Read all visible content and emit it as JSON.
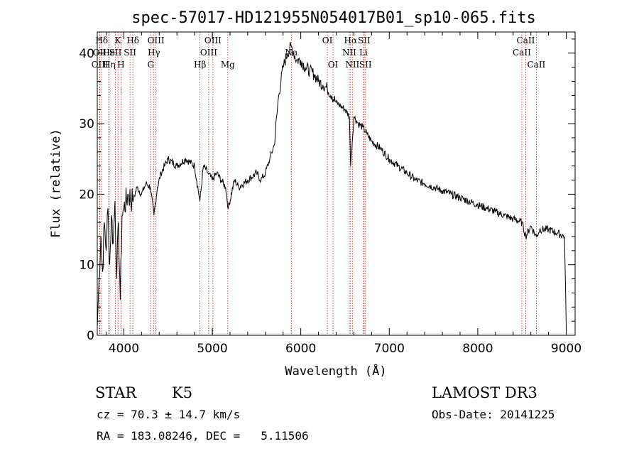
{
  "chart_data": {
    "type": "line",
    "title": "spec-57017-HD121955N054017B01_sp10-065.fits",
    "xlabel": "Wavelength (Å)",
    "ylabel": "Flux (relative)",
    "xlim": [
      3700,
      9100
    ],
    "ylim": [
      0,
      43
    ],
    "xticks": [
      4000,
      5000,
      6000,
      7000,
      8000,
      9000
    ],
    "yticks": [
      0,
      10,
      20,
      30,
      40
    ],
    "grid": false,
    "series": [
      {
        "x": [
          3700,
          3720,
          3740,
          3760,
          3780,
          3800,
          3820,
          3840,
          3860,
          3880,
          3900,
          3920,
          3940,
          3960,
          3980,
          4000,
          4050,
          4100,
          4150,
          4200,
          4250,
          4300,
          4340,
          4380,
          4420,
          4460,
          4500,
          4600,
          4700,
          4800,
          4860,
          4900,
          4950,
          5000,
          5050,
          5100,
          5150,
          5180,
          5250,
          5300,
          5400,
          5500,
          5550,
          5600,
          5650,
          5700,
          5750,
          5800,
          5850,
          5890,
          5920,
          5950,
          6000,
          6050,
          6100,
          6150,
          6200,
          6250,
          6300,
          6350,
          6400,
          6450,
          6500,
          6550,
          6563,
          6600,
          6650,
          6700,
          6750,
          6800,
          6900,
          7000,
          7100,
          7200,
          7300,
          7400,
          7500,
          7600,
          7700,
          7800,
          7900,
          8000,
          8100,
          8200,
          8300,
          8400,
          8500,
          8542,
          8600,
          8662,
          8700,
          8800,
          8900,
          8980,
          9000
        ],
        "y": [
          1,
          8,
          14,
          9,
          16,
          12,
          18,
          10,
          17,
          13,
          19,
          8,
          16,
          5,
          17,
          18,
          20,
          19,
          21,
          20,
          21.5,
          21,
          17,
          21,
          23,
          24,
          25,
          24,
          25,
          24,
          19,
          24,
          23,
          22,
          23,
          22,
          21,
          18,
          22,
          21,
          22,
          23,
          22,
          23,
          25,
          27,
          34,
          38,
          40,
          41,
          40,
          39,
          39,
          38,
          37.5,
          37,
          36,
          35.5,
          35,
          34,
          33,
          32.5,
          32,
          31,
          24,
          31,
          30,
          29.5,
          28.5,
          27.5,
          26.5,
          25,
          24,
          23,
          22,
          21.5,
          21,
          20.5,
          20,
          19.5,
          19,
          18.5,
          18,
          17.5,
          17,
          16.5,
          16,
          14,
          15.5,
          14,
          15,
          15,
          14.5,
          14,
          1
        ]
      }
    ],
    "lines": [
      {
        "label": "Hδ",
        "x": 3750,
        "row": 0
      },
      {
        "label": "OII",
        "x": 3727,
        "row": 1
      },
      {
        "label": "OIII",
        "x": 3730,
        "row": 2
      },
      {
        "label": "He",
        "x": 3830,
        "row": 1
      },
      {
        "label": "Hη",
        "x": 3835,
        "row": 2
      },
      {
        "label": "K",
        "x": 3934,
        "row": 0
      },
      {
        "label": "SII",
        "x": 3905,
        "row": 1
      },
      {
        "label": "H",
        "x": 3968,
        "row": 2
      },
      {
        "label": "Hδ",
        "x": 4102,
        "row": 0
      },
      {
        "label": "SII",
        "x": 4070,
        "row": 1
      },
      {
        "label": "OIII",
        "x": 4363,
        "row": 0
      },
      {
        "label": "Hγ",
        "x": 4340,
        "row": 1
      },
      {
        "label": "G",
        "x": 4304,
        "row": 2
      },
      {
        "label": "Hβ",
        "x": 4861,
        "row": 2
      },
      {
        "label": "OIII",
        "x": 5007,
        "row": 0
      },
      {
        "label": "OIII",
        "x": 4959,
        "row": 1
      },
      {
        "label": "Mg",
        "x": 5175,
        "row": 2
      },
      {
        "label": "Na",
        "x": 5893,
        "row": 1
      },
      {
        "label": "OI",
        "x": 6300,
        "row": 0
      },
      {
        "label": "OI",
        "x": 6364,
        "row": 2
      },
      {
        "label": "Hα",
        "x": 6563,
        "row": 0
      },
      {
        "label": "SII",
        "x": 6716,
        "row": 0
      },
      {
        "label": "NII",
        "x": 6548,
        "row": 1
      },
      {
        "label": "Li",
        "x": 6708,
        "row": 1
      },
      {
        "label": "NII",
        "x": 6583,
        "row": 2
      },
      {
        "label": "SII",
        "x": 6731,
        "row": 2
      },
      {
        "label": "CaII",
        "x": 8542,
        "row": 0
      },
      {
        "label": "CaII",
        "x": 8498,
        "row": 1
      },
      {
        "label": "CaII",
        "x": 8662,
        "row": 2
      }
    ]
  },
  "info": {
    "class": "STAR",
    "subclass": "K5",
    "survey": "LAMOST DR3",
    "cz": "cz = 70.3 ± 14.7 km/s",
    "obs_date": "Obs-Date: 20141225",
    "radec": "RA = 183.08246, DEC =   5.11506"
  }
}
